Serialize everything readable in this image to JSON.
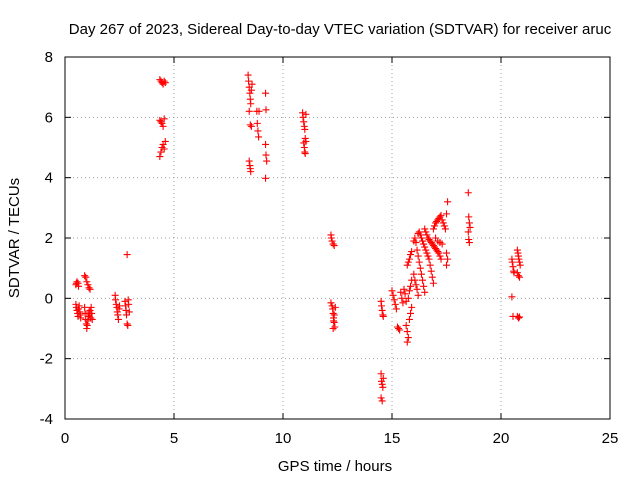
{
  "chart_data": {
    "type": "scatter",
    "title": "Day 267 of 2023, Sidereal Day-to-day VTEC variation (SDTVAR) for receiver aruc",
    "xlabel": "GPS time / hours",
    "ylabel": "SDTVAR / TECUs",
    "xlim": [
      0,
      25
    ],
    "ylim": [
      -4,
      8
    ],
    "xticks": [
      0,
      5,
      10,
      15,
      20,
      25
    ],
    "yticks": [
      -4,
      -2,
      0,
      2,
      4,
      6,
      8
    ],
    "grid": true,
    "marker": "+",
    "marker_color": "#ff0000",
    "series": [
      {
        "name": "SDTVAR",
        "points": [
          [
            0.5,
            0.45
          ],
          [
            0.52,
            0.5
          ],
          [
            0.55,
            0.55
          ],
          [
            0.6,
            0.5
          ],
          [
            0.62,
            0.4
          ],
          [
            0.5,
            -0.2
          ],
          [
            0.52,
            -0.3
          ],
          [
            0.55,
            -0.4
          ],
          [
            0.58,
            -0.5
          ],
          [
            0.6,
            -0.6
          ],
          [
            0.62,
            -0.35
          ],
          [
            0.65,
            -0.25
          ],
          [
            0.68,
            -0.45
          ],
          [
            0.7,
            -0.55
          ],
          [
            0.72,
            -0.65
          ],
          [
            0.9,
            0.75
          ],
          [
            0.95,
            0.7
          ],
          [
            1.0,
            0.55
          ],
          [
            1.05,
            0.45
          ],
          [
            1.1,
            0.35
          ],
          [
            1.15,
            0.3
          ],
          [
            0.9,
            -0.3
          ],
          [
            0.92,
            -0.5
          ],
          [
            0.95,
            -0.7
          ],
          [
            0.98,
            -0.85
          ],
          [
            1.0,
            -1.0
          ],
          [
            1.02,
            -0.9
          ],
          [
            1.05,
            -0.75
          ],
          [
            1.08,
            -0.6
          ],
          [
            1.1,
            -0.45
          ],
          [
            1.12,
            -0.55
          ],
          [
            1.15,
            -0.4
          ],
          [
            1.18,
            -0.65
          ],
          [
            1.2,
            -0.3
          ],
          [
            1.22,
            -0.5
          ],
          [
            1.25,
            -0.7
          ],
          [
            2.3,
            0.1
          ],
          [
            2.32,
            -0.05
          ],
          [
            2.35,
            -0.2
          ],
          [
            2.38,
            -0.3
          ],
          [
            2.4,
            -0.45
          ],
          [
            2.42,
            -0.55
          ],
          [
            2.45,
            -0.7
          ],
          [
            2.48,
            -0.35
          ],
          [
            2.5,
            -0.25
          ],
          [
            2.75,
            -0.1
          ],
          [
            2.78,
            -0.25
          ],
          [
            2.8,
            -0.4
          ],
          [
            2.82,
            -0.55
          ],
          [
            2.85,
            -0.85
          ],
          [
            2.88,
            -0.9
          ],
          [
            2.9,
            -0.05
          ],
          [
            2.92,
            -0.2
          ],
          [
            2.95,
            -0.45
          ],
          [
            2.85,
            1.45
          ],
          [
            4.35,
            7.25
          ],
          [
            4.4,
            7.2
          ],
          [
            4.45,
            7.15
          ],
          [
            4.5,
            7.1
          ],
          [
            4.55,
            7.2
          ],
          [
            4.6,
            7.15
          ],
          [
            4.35,
            5.9
          ],
          [
            4.4,
            5.85
          ],
          [
            4.45,
            5.8
          ],
          [
            4.5,
            5.7
          ],
          [
            4.55,
            5.95
          ],
          [
            4.35,
            4.7
          ],
          [
            4.4,
            4.85
          ],
          [
            4.45,
            5.0
          ],
          [
            4.5,
            5.1
          ],
          [
            4.55,
            4.95
          ],
          [
            4.6,
            5.2
          ],
          [
            8.4,
            7.4
          ],
          [
            8.42,
            7.2
          ],
          [
            8.45,
            7.0
          ],
          [
            8.48,
            6.8
          ],
          [
            8.5,
            6.6
          ],
          [
            8.52,
            6.45
          ],
          [
            8.55,
            6.9
          ],
          [
            8.58,
            7.1
          ],
          [
            8.45,
            6.2
          ],
          [
            8.5,
            5.75
          ],
          [
            8.55,
            5.7
          ],
          [
            8.45,
            4.55
          ],
          [
            8.48,
            4.4
          ],
          [
            8.5,
            4.3
          ],
          [
            8.52,
            4.2
          ],
          [
            8.8,
            6.2
          ],
          [
            8.82,
            5.8
          ],
          [
            8.85,
            5.55
          ],
          [
            8.88,
            5.35
          ],
          [
            8.9,
            6.2
          ],
          [
            9.2,
            6.8
          ],
          [
            9.22,
            6.25
          ],
          [
            9.2,
            5.1
          ],
          [
            9.22,
            4.75
          ],
          [
            9.25,
            4.55
          ],
          [
            9.2,
            3.98
          ],
          [
            10.9,
            6.15
          ],
          [
            10.92,
            6.0
          ],
          [
            10.95,
            5.85
          ],
          [
            10.98,
            5.7
          ],
          [
            11.0,
            5.6
          ],
          [
            11.02,
            5.3
          ],
          [
            10.95,
            5.15
          ],
          [
            10.98,
            5.0
          ],
          [
            11.0,
            4.85
          ],
          [
            11.02,
            4.8
          ],
          [
            11.05,
            6.1
          ],
          [
            11.05,
            5.2
          ],
          [
            12.2,
            2.1
          ],
          [
            12.22,
            2.0
          ],
          [
            12.25,
            1.9
          ],
          [
            12.3,
            1.8
          ],
          [
            12.35,
            1.75
          ],
          [
            12.2,
            -0.15
          ],
          [
            12.25,
            -0.25
          ],
          [
            12.28,
            -0.35
          ],
          [
            12.3,
            -0.5
          ],
          [
            12.32,
            -0.65
          ],
          [
            12.35,
            -0.8
          ],
          [
            12.38,
            -0.95
          ],
          [
            12.3,
            -1.0
          ],
          [
            12.32,
            -0.75
          ],
          [
            12.35,
            -0.55
          ],
          [
            12.4,
            -0.3
          ],
          [
            14.5,
            -0.1
          ],
          [
            14.52,
            -0.25
          ],
          [
            14.55,
            -0.4
          ],
          [
            14.58,
            -0.55
          ],
          [
            14.6,
            -0.6
          ],
          [
            14.5,
            -2.5
          ],
          [
            14.52,
            -2.75
          ],
          [
            14.55,
            -2.85
          ],
          [
            14.58,
            -2.95
          ],
          [
            14.5,
            -3.3
          ],
          [
            14.55,
            -3.4
          ],
          [
            14.6,
            -2.65
          ],
          [
            15.0,
            0.25
          ],
          [
            15.05,
            0.1
          ],
          [
            15.1,
            -0.05
          ],
          [
            15.15,
            -0.2
          ],
          [
            15.2,
            -0.35
          ],
          [
            15.25,
            -0.95
          ],
          [
            15.3,
            -1.0
          ],
          [
            15.35,
            -1.05
          ],
          [
            15.4,
            0.2
          ],
          [
            15.45,
            0.0
          ],
          [
            15.5,
            -0.15
          ],
          [
            15.55,
            0.3
          ],
          [
            15.6,
            0.15
          ],
          [
            15.65,
            -0.1
          ],
          [
            15.65,
            -0.9
          ],
          [
            15.7,
            -1.1
          ],
          [
            15.75,
            -1.3
          ],
          [
            15.7,
            -1.45
          ],
          [
            15.8,
            -0.7
          ],
          [
            15.85,
            -0.5
          ],
          [
            15.9,
            -0.3
          ],
          [
            15.75,
            0.0
          ],
          [
            15.8,
            0.25
          ],
          [
            15.85,
            0.4
          ],
          [
            15.9,
            0.6
          ],
          [
            15.7,
            1.1
          ],
          [
            15.75,
            1.2
          ],
          [
            15.8,
            1.3
          ],
          [
            15.85,
            1.45
          ],
          [
            15.9,
            1.55
          ],
          [
            16.0,
            0.8
          ],
          [
            16.05,
            0.6
          ],
          [
            16.1,
            0.45
          ],
          [
            16.15,
            0.3
          ],
          [
            16.2,
            0.1
          ],
          [
            16.0,
            1.9
          ],
          [
            16.05,
            2.0
          ],
          [
            16.1,
            1.85
          ],
          [
            16.15,
            1.6
          ],
          [
            16.2,
            1.4
          ],
          [
            16.25,
            1.2
          ],
          [
            16.3,
            1.0
          ],
          [
            16.35,
            0.8
          ],
          [
            16.4,
            0.6
          ],
          [
            16.45,
            0.4
          ],
          [
            16.5,
            0.2
          ],
          [
            16.2,
            2.15
          ],
          [
            16.25,
            2.2
          ],
          [
            16.3,
            2.1
          ],
          [
            16.35,
            2.0
          ],
          [
            16.4,
            1.9
          ],
          [
            16.45,
            1.8
          ],
          [
            16.5,
            1.7
          ],
          [
            16.55,
            1.6
          ],
          [
            16.6,
            1.5
          ],
          [
            16.65,
            1.4
          ],
          [
            16.7,
            1.3
          ],
          [
            16.75,
            1.1
          ],
          [
            16.8,
            0.9
          ],
          [
            16.85,
            0.7
          ],
          [
            16.9,
            0.5
          ],
          [
            16.5,
            2.3
          ],
          [
            16.55,
            2.2
          ],
          [
            16.6,
            2.1
          ],
          [
            16.65,
            2.0
          ],
          [
            16.7,
            1.95
          ],
          [
            16.75,
            1.9
          ],
          [
            16.8,
            1.85
          ],
          [
            16.85,
            1.8
          ],
          [
            16.9,
            1.75
          ],
          [
            16.95,
            1.7
          ],
          [
            17.0,
            1.65
          ],
          [
            17.05,
            1.6
          ],
          [
            17.1,
            1.55
          ],
          [
            17.15,
            1.5
          ],
          [
            17.2,
            1.4
          ],
          [
            17.25,
            1.3
          ],
          [
            16.9,
            2.3
          ],
          [
            16.95,
            2.4
          ],
          [
            17.0,
            2.5
          ],
          [
            17.05,
            2.55
          ],
          [
            17.1,
            2.6
          ],
          [
            17.15,
            2.65
          ],
          [
            17.2,
            2.7
          ],
          [
            17.25,
            2.75
          ],
          [
            17.3,
            2.6
          ],
          [
            17.35,
            2.5
          ],
          [
            17.4,
            2.4
          ],
          [
            17.45,
            2.3
          ],
          [
            17.0,
            2.0
          ],
          [
            17.1,
            1.9
          ],
          [
            17.2,
            1.85
          ],
          [
            17.3,
            1.8
          ],
          [
            17.5,
            2.8
          ],
          [
            17.55,
            3.2
          ],
          [
            17.5,
            1.5
          ],
          [
            17.55,
            1.3
          ],
          [
            17.5,
            1.1
          ],
          [
            18.5,
            3.5
          ],
          [
            18.52,
            2.7
          ],
          [
            18.55,
            2.5
          ],
          [
            18.58,
            2.35
          ],
          [
            18.5,
            2.2
          ],
          [
            18.52,
            1.95
          ],
          [
            18.55,
            1.85
          ],
          [
            20.5,
            1.3
          ],
          [
            20.52,
            1.2
          ],
          [
            20.55,
            1.05
          ],
          [
            20.58,
            0.9
          ],
          [
            20.6,
            0.85
          ],
          [
            20.5,
            0.05
          ],
          [
            20.55,
            -0.6
          ],
          [
            20.75,
            1.6
          ],
          [
            20.78,
            1.5
          ],
          [
            20.8,
            1.4
          ],
          [
            20.82,
            1.3
          ],
          [
            20.85,
            1.2
          ],
          [
            20.88,
            1.1
          ],
          [
            20.75,
            0.85
          ],
          [
            20.8,
            0.75
          ],
          [
            20.85,
            0.7
          ],
          [
            20.75,
            -0.6
          ],
          [
            20.8,
            -0.65
          ],
          [
            20.85,
            -0.62
          ]
        ]
      }
    ]
  }
}
